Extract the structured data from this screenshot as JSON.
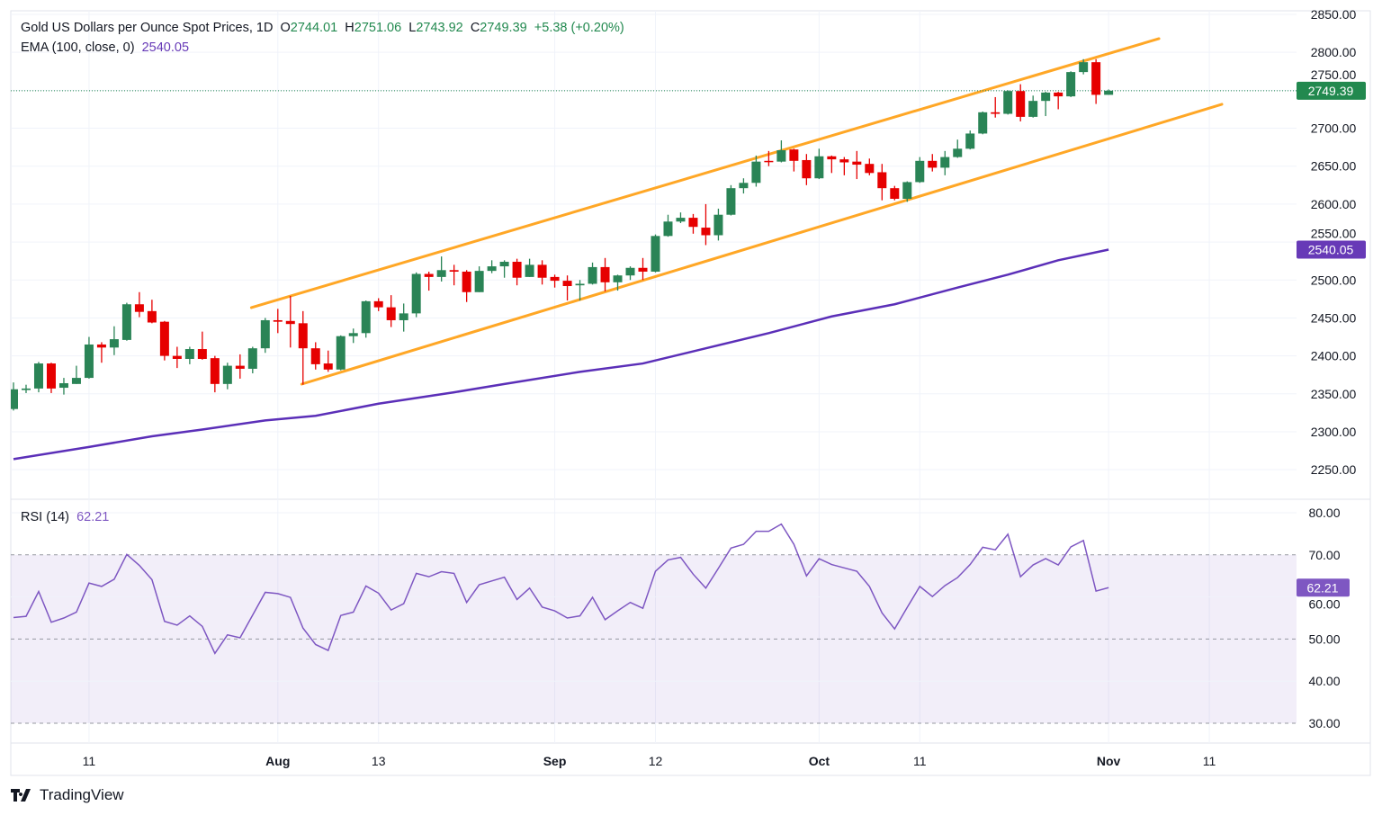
{
  "header": {
    "title": "Gold US Dollars per Ounce Spot Prices, 1D",
    "ohlc": {
      "o_label": "O",
      "o": "2744.01",
      "h_label": "H",
      "h": "2751.06",
      "l_label": "L",
      "l": "2743.92",
      "c_label": "C",
      "c": "2749.39",
      "change": "+5.38 (+0.20%)"
    },
    "ema_label": "EMA (100, close, 0)",
    "ema_value": "2540.05",
    "rsi_label": "RSI (14)",
    "rsi_value": "62.21"
  },
  "branding": {
    "logo_text": "TradingView"
  },
  "colors": {
    "up": "#2a8456",
    "down": "#e60000",
    "channel": "#ffa726",
    "ema": "#5b2fb8",
    "ema_label_bg": "#673ab7",
    "rsi": "#7e57c2",
    "last_price_bg": "#22894f"
  },
  "chart_data": [
    {
      "type": "candlestick",
      "title": "Gold US Dollars per Ounce Spot Prices, 1D",
      "ylim": [
        2220,
        2860
      ],
      "y_ticks": [
        "2850.00",
        "2800.00",
        "2750.00",
        "2700.00",
        "2650.00",
        "2600.00",
        "2550.00",
        "2500.00",
        "2450.00",
        "2400.00",
        "2350.00",
        "2300.00",
        "2250.00"
      ],
      "grid": true,
      "x_ticks": [
        {
          "label": "11",
          "bar": 6,
          "bold": false
        },
        {
          "label": "Aug",
          "bar": 21,
          "bold": true
        },
        {
          "label": "13",
          "bar": 29,
          "bold": false
        },
        {
          "label": "Sep",
          "bar": 43,
          "bold": true
        },
        {
          "label": "12",
          "bar": 51,
          "bold": false
        },
        {
          "label": "Oct",
          "bar": 64,
          "bold": true
        },
        {
          "label": "11",
          "bar": 72,
          "bold": false
        },
        {
          "label": "Nov",
          "bar": 87,
          "bold": true
        },
        {
          "label": "11",
          "bar": 95,
          "bold": false
        }
      ],
      "ohlc": [
        [
          2330,
          2365,
          2328,
          2356
        ],
        [
          2355,
          2362,
          2351,
          2357
        ],
        [
          2357,
          2392,
          2352,
          2390
        ],
        [
          2390,
          2391,
          2351,
          2357
        ],
        [
          2358,
          2371,
          2349,
          2364
        ],
        [
          2363,
          2387,
          2363,
          2371
        ],
        [
          2371,
          2425,
          2370,
          2415
        ],
        [
          2415,
          2418,
          2391,
          2411
        ],
        [
          2411,
          2439,
          2401,
          2422
        ],
        [
          2421,
          2470,
          2420,
          2468
        ],
        [
          2468,
          2484,
          2451,
          2458
        ],
        [
          2459,
          2474,
          2443,
          2444
        ],
        [
          2445,
          2446,
          2394,
          2400
        ],
        [
          2400,
          2412,
          2384,
          2396
        ],
        [
          2396,
          2412,
          2389,
          2409
        ],
        [
          2409,
          2432,
          2395,
          2396
        ],
        [
          2397,
          2400,
          2352,
          2363
        ],
        [
          2363,
          2391,
          2356,
          2387
        ],
        [
          2387,
          2402,
          2370,
          2383
        ],
        [
          2383,
          2412,
          2377,
          2410
        ],
        [
          2410,
          2450,
          2404,
          2447
        ],
        [
          2447,
          2462,
          2430,
          2445
        ],
        [
          2446,
          2479,
          2411,
          2442
        ],
        [
          2443,
          2459,
          2362,
          2410
        ],
        [
          2410,
          2418,
          2382,
          2389
        ],
        [
          2390,
          2407,
          2379,
          2382
        ],
        [
          2382,
          2427,
          2381,
          2426
        ],
        [
          2426,
          2436,
          2417,
          2430
        ],
        [
          2430,
          2473,
          2424,
          2472
        ],
        [
          2472,
          2476,
          2459,
          2464
        ],
        [
          2464,
          2480,
          2438,
          2447
        ],
        [
          2447,
          2469,
          2432,
          2456
        ],
        [
          2456,
          2510,
          2451,
          2508
        ],
        [
          2508,
          2511,
          2486,
          2504
        ],
        [
          2504,
          2531,
          2498,
          2513
        ],
        [
          2513,
          2520,
          2493,
          2511
        ],
        [
          2511,
          2513,
          2471,
          2484
        ],
        [
          2484,
          2518,
          2484,
          2512
        ],
        [
          2512,
          2526,
          2509,
          2518
        ],
        [
          2518,
          2526,
          2503,
          2524
        ],
        [
          2524,
          2528,
          2493,
          2503
        ],
        [
          2504,
          2528,
          2504,
          2520
        ],
        [
          2520,
          2526,
          2494,
          2503
        ],
        [
          2504,
          2507,
          2490,
          2499
        ],
        [
          2499,
          2506,
          2473,
          2492
        ],
        [
          2493,
          2500,
          2473,
          2495
        ],
        [
          2495,
          2523,
          2494,
          2517
        ],
        [
          2517,
          2529,
          2485,
          2497
        ],
        [
          2497,
          2507,
          2486,
          2506
        ],
        [
          2506,
          2518,
          2500,
          2516
        ],
        [
          2516,
          2529,
          2500,
          2511
        ],
        [
          2511,
          2560,
          2510,
          2558
        ],
        [
          2558,
          2586,
          2557,
          2577
        ],
        [
          2577,
          2589,
          2575,
          2582
        ],
        [
          2582,
          2587,
          2561,
          2570
        ],
        [
          2569,
          2600,
          2546,
          2559
        ],
        [
          2559,
          2594,
          2552,
          2586
        ],
        [
          2586,
          2625,
          2585,
          2621
        ],
        [
          2621,
          2634,
          2614,
          2628
        ],
        [
          2628,
          2664,
          2623,
          2656
        ],
        [
          2657,
          2670,
          2650,
          2656
        ],
        [
          2656,
          2684,
          2655,
          2671
        ],
        [
          2672,
          2673,
          2643,
          2657
        ],
        [
          2658,
          2666,
          2625,
          2634
        ],
        [
          2634,
          2673,
          2633,
          2663
        ],
        [
          2663,
          2664,
          2641,
          2659
        ],
        [
          2659,
          2662,
          2638,
          2655
        ],
        [
          2656,
          2670,
          2633,
          2652
        ],
        [
          2653,
          2660,
          2638,
          2641
        ],
        [
          2642,
          2653,
          2605,
          2621
        ],
        [
          2621,
          2624,
          2605,
          2607
        ],
        [
          2607,
          2630,
          2603,
          2629
        ],
        [
          2629,
          2662,
          2628,
          2657
        ],
        [
          2657,
          2666,
          2643,
          2648
        ],
        [
          2648,
          2670,
          2638,
          2662
        ],
        [
          2662,
          2685,
          2661,
          2673
        ],
        [
          2673,
          2697,
          2672,
          2693
        ],
        [
          2693,
          2722,
          2692,
          2721
        ],
        [
          2721,
          2741,
          2714,
          2719
        ],
        [
          2719,
          2750,
          2718,
          2749
        ],
        [
          2749,
          2758,
          2709,
          2715
        ],
        [
          2715,
          2743,
          2714,
          2736
        ],
        [
          2736,
          2748,
          2716,
          2747
        ],
        [
          2747,
          2748,
          2725,
          2742
        ],
        [
          2742,
          2775,
          2741,
          2774
        ],
        [
          2774,
          2791,
          2771,
          2787
        ],
        [
          2787,
          2791,
          2732,
          2744
        ],
        [
          2744.01,
          2751.06,
          2743.92,
          2749.39
        ]
      ],
      "ema": [
        [
          0,
          2264
        ],
        [
          6,
          2280
        ],
        [
          11,
          2294
        ],
        [
          15,
          2303
        ],
        [
          20,
          2315
        ],
        [
          24,
          2321
        ],
        [
          29,
          2337
        ],
        [
          35,
          2352
        ],
        [
          39,
          2363
        ],
        [
          45,
          2379
        ],
        [
          50,
          2390
        ],
        [
          55,
          2410
        ],
        [
          60,
          2430
        ],
        [
          65,
          2452
        ],
        [
          70,
          2468
        ],
        [
          75,
          2490
        ],
        [
          79,
          2507
        ],
        [
          83,
          2526
        ],
        [
          87,
          2540.05
        ]
      ],
      "channel": {
        "upper": [
          [
            18.9,
            2463.6
          ],
          [
            91,
            2818
          ]
        ],
        "lower": [
          [
            22.9,
            2362.8
          ],
          [
            96,
            2731.5
          ]
        ]
      },
      "last_price": "2749.39",
      "ema_last": "2540.05"
    },
    {
      "type": "line",
      "title": "RSI (14)",
      "ylim": [
        25,
        83
      ],
      "y_ticks": [
        "80.00",
        "70.00",
        "60.00",
        "50.00",
        "40.00",
        "30.00"
      ],
      "bands": [
        70,
        50,
        30
      ],
      "values": [
        55.1,
        55.4,
        61.3,
        54.0,
        55.0,
        56.4,
        63.3,
        62.5,
        64.2,
        70.1,
        67.5,
        64.1,
        54.2,
        53.3,
        55.5,
        53.0,
        46.6,
        51.0,
        50.3,
        55.7,
        61.1,
        60.8,
        59.9,
        52.6,
        48.7,
        47.3,
        55.6,
        56.4,
        62.6,
        60.9,
        56.9,
        58.4,
        65.6,
        64.8,
        66.0,
        65.6,
        58.7,
        62.9,
        63.8,
        64.7,
        59.4,
        62.1,
        57.6,
        56.7,
        55.0,
        55.5,
        59.9,
        54.6,
        56.7,
        58.7,
        57.3,
        66.1,
        68.8,
        69.4,
        65.4,
        62.1,
        66.8,
        71.6,
        72.5,
        75.6,
        75.6,
        77.3,
        72.5,
        65.0,
        69.1,
        67.7,
        66.9,
        66.1,
        62.5,
        56.2,
        52.4,
        57.5,
        62.5,
        60.1,
        62.7,
        64.6,
        67.7,
        71.8,
        71.2,
        74.9,
        64.8,
        67.6,
        69.1,
        67.6,
        71.9,
        73.4,
        61.4,
        62.21
      ],
      "last_value": "62.21"
    }
  ]
}
